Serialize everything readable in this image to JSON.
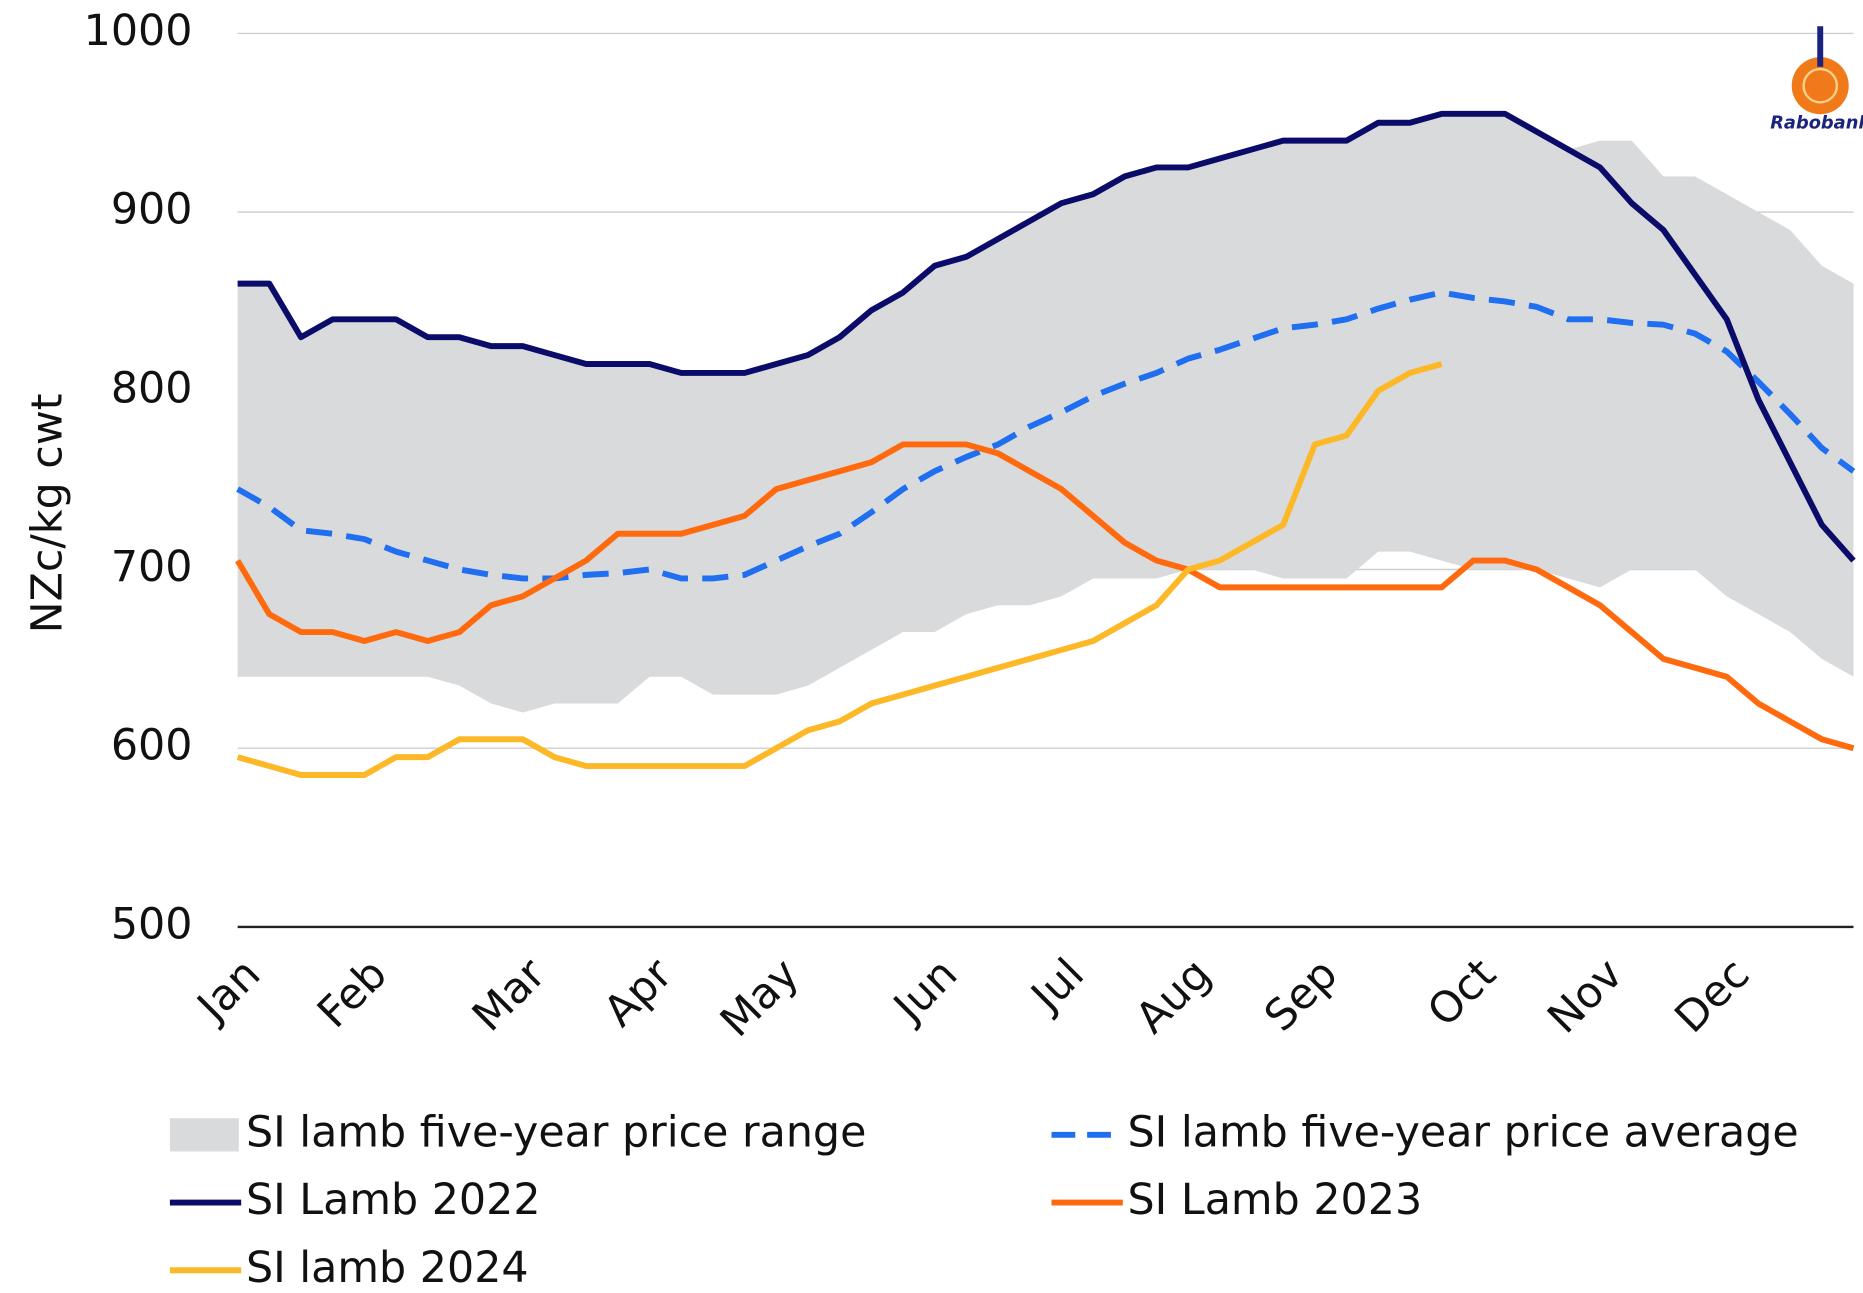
{
  "chart_data": {
    "type": "line",
    "y_label": "NZc/kg cwt",
    "logo_text": "Rabobank",
    "ylim": [
      500,
      1000
    ],
    "yticks": [
      500,
      600,
      700,
      800,
      900,
      1000
    ],
    "grid": true,
    "categories": [
      "Jan",
      null,
      null,
      null,
      "Feb",
      null,
      null,
      null,
      null,
      "Mar",
      null,
      null,
      null,
      "Apr",
      null,
      null,
      null,
      "May",
      null,
      null,
      null,
      null,
      "Jun",
      null,
      null,
      null,
      "Jul",
      null,
      null,
      null,
      "Aug",
      null,
      null,
      null,
      "Sep",
      null,
      null,
      null,
      null,
      "Oct",
      null,
      null,
      null,
      "Nov",
      null,
      null,
      null,
      "Dec",
      null,
      null,
      null,
      null
    ],
    "range": {
      "name": "SI lamb five-year price range",
      "color": "#d9dadc",
      "upper": [
        860,
        860,
        830,
        840,
        840,
        840,
        830,
        830,
        825,
        825,
        820,
        815,
        815,
        815,
        810,
        810,
        810,
        815,
        820,
        830,
        845,
        855,
        870,
        875,
        885,
        895,
        905,
        910,
        920,
        925,
        925,
        930,
        935,
        940,
        940,
        940,
        950,
        950,
        955,
        955,
        955,
        945,
        935,
        940,
        940,
        920,
        920,
        910,
        900,
        890,
        870,
        860
      ],
      "lower": [
        640,
        640,
        640,
        640,
        640,
        640,
        640,
        635,
        625,
        620,
        625,
        625,
        625,
        640,
        640,
        630,
        630,
        630,
        635,
        645,
        655,
        665,
        665,
        675,
        680,
        680,
        685,
        695,
        695,
        695,
        700,
        700,
        700,
        695,
        695,
        695,
        710,
        710,
        705,
        700,
        700,
        700,
        695,
        690,
        700,
        700,
        700,
        685,
        675,
        665,
        650,
        640
      ]
    },
    "series": [
      {
        "name": "SI lamb five-year price average",
        "color": "#1f6ff0",
        "dashed": true,
        "values": [
          745,
          735,
          722,
          720,
          717,
          710,
          705,
          700,
          697,
          695,
          695,
          697,
          698,
          700,
          695,
          695,
          697,
          705,
          713,
          720,
          732,
          745,
          755,
          763,
          770,
          780,
          788,
          797,
          804,
          810,
          818,
          823,
          829,
          835,
          837,
          840,
          846,
          851,
          855,
          852,
          850,
          847,
          840,
          840,
          838,
          837,
          832,
          822,
          805,
          787,
          768,
          755
        ]
      },
      {
        "name": "SI Lamb 2022",
        "color": "#0b0b69",
        "values": [
          860,
          860,
          830,
          840,
          840,
          840,
          830,
          830,
          825,
          825,
          820,
          815,
          815,
          815,
          810,
          810,
          810,
          815,
          820,
          830,
          845,
          855,
          870,
          875,
          885,
          895,
          905,
          910,
          920,
          925,
          925,
          930,
          935,
          940,
          940,
          940,
          950,
          950,
          955,
          955,
          955,
          945,
          935,
          925,
          905,
          890,
          865,
          840,
          795,
          760,
          725,
          705
        ]
      },
      {
        "name": "SI Lamb 2023",
        "color": "#ff6a0f",
        "values": [
          705,
          675,
          665,
          665,
          660,
          665,
          660,
          665,
          680,
          685,
          695,
          705,
          720,
          720,
          720,
          725,
          730,
          745,
          750,
          755,
          760,
          770,
          770,
          770,
          765,
          755,
          745,
          730,
          715,
          705,
          700,
          690,
          690,
          690,
          690,
          690,
          690,
          690,
          690,
          705,
          705,
          700,
          690,
          680,
          665,
          650,
          645,
          640,
          625,
          615,
          605,
          600
        ]
      },
      {
        "name": "SI lamb 2024",
        "color": "#fdb827",
        "values": [
          595,
          590,
          585,
          585,
          585,
          595,
          595,
          605,
          605,
          605,
          595,
          590,
          590,
          590,
          590,
          590,
          590,
          600,
          610,
          615,
          625,
          630,
          635,
          640,
          645,
          650,
          655,
          660,
          670,
          680,
          700,
          705,
          715,
          725,
          770,
          775,
          800,
          810,
          815,
          null,
          null,
          null,
          null,
          null,
          null,
          null,
          null,
          null,
          null,
          null,
          null,
          null
        ]
      }
    ]
  }
}
